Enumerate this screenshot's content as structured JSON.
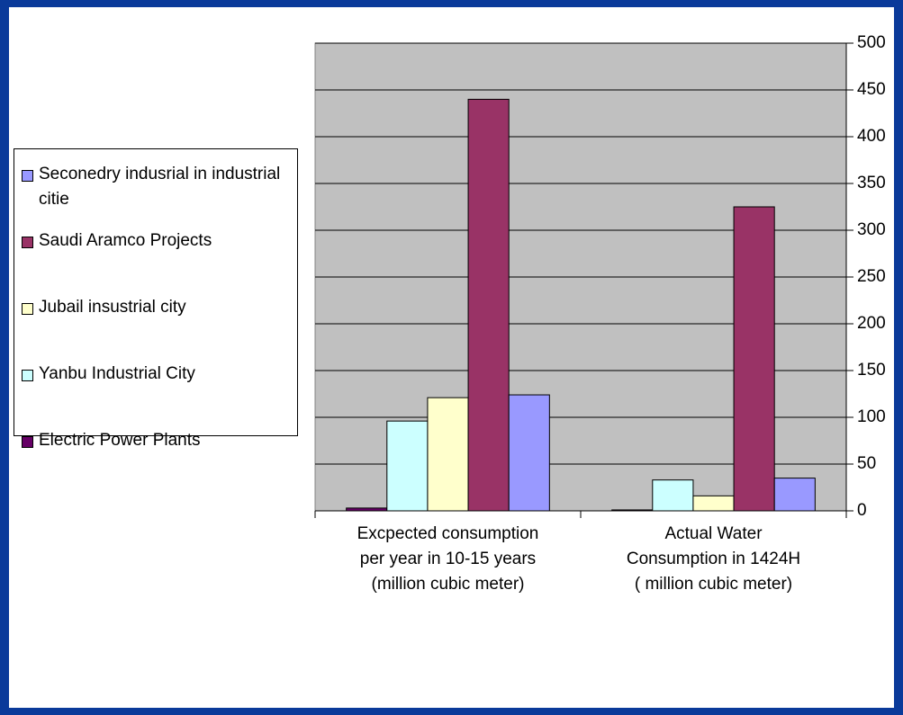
{
  "chart_data": {
    "type": "bar",
    "categories": [
      "Excpected consumption\nper year in 10-15 years\n(million  cubic meter)",
      "Actual Water\nConsumption    in 1424H\n( million cubic meter)"
    ],
    "series": [
      {
        "name": "Electric Power Plants",
        "color": "#660066",
        "values": [
          3,
          1
        ]
      },
      {
        "name": "Yanbu Industrial City",
        "color": "#ccffff",
        "values": [
          96,
          33
        ]
      },
      {
        "name": "Jubail insustrial city",
        "color": "#ffffcc",
        "values": [
          121,
          16
        ]
      },
      {
        "name": "Saudi Aramco Projects",
        "color": "#993366",
        "values": [
          440,
          325
        ]
      },
      {
        "name": "Seconedry indusrial in industrial citie",
        "color": "#9999ff",
        "values": [
          124,
          35
        ]
      }
    ],
    "ylim": [
      0,
      500
    ],
    "yticks": [
      0,
      50,
      100,
      150,
      200,
      250,
      300,
      350,
      400,
      450,
      500
    ],
    "grid": true,
    "y_axis_side": "right",
    "legend": "left"
  }
}
